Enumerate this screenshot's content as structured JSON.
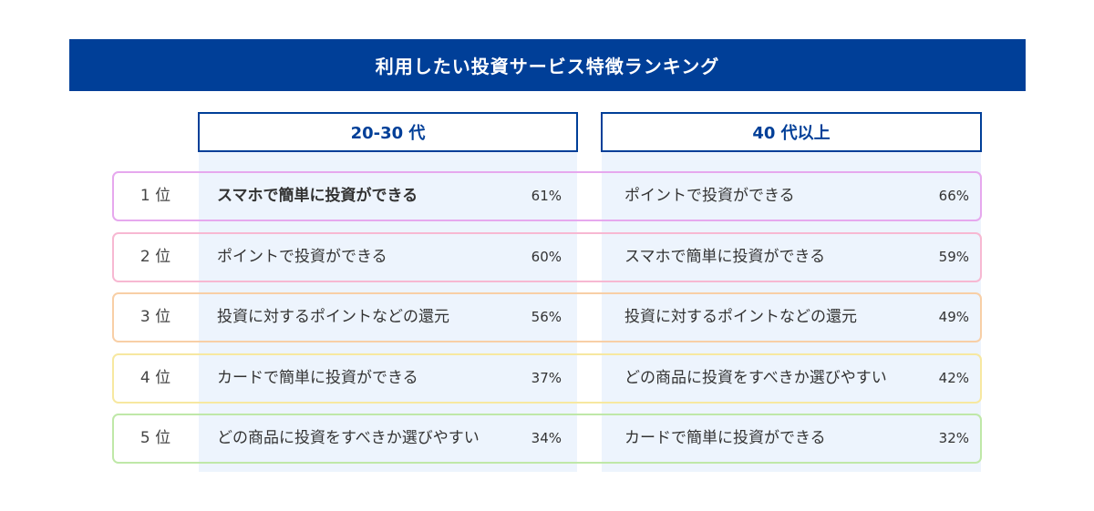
{
  "title": "利用したい投資サービス特徴ランキング",
  "columns": [
    {
      "header": "20-30 代"
    },
    {
      "header": "40 代以上"
    }
  ],
  "rank_labels": [
    "1 位",
    "2 位",
    "3 位",
    "4 位",
    "5 位"
  ],
  "row_colors": [
    "#e6a8ee",
    "#f7b8d2",
    "#f8cfa6",
    "#f7e8a0",
    "#bfe8a8"
  ],
  "chart_data": {
    "type": "table",
    "title": "利用したい投資サービス特徴ランキング",
    "groups": [
      {
        "name": "20-30 代",
        "rows": [
          {
            "rank": "1 位",
            "label": "スマホで簡単に投資ができる",
            "value": 61,
            "display": "61%"
          },
          {
            "rank": "2 位",
            "label": "ポイントで投資ができる",
            "value": 60,
            "display": "60%"
          },
          {
            "rank": "3 位",
            "label": "投資に対するポイントなどの還元",
            "value": 56,
            "display": "56%"
          },
          {
            "rank": "4 位",
            "label": "カードで簡単に投資ができる",
            "value": 37,
            "display": "37%"
          },
          {
            "rank": "5 位",
            "label": "どの商品に投資をすべきか選びやすい",
            "value": 34,
            "display": "34%"
          }
        ]
      },
      {
        "name": "40 代以上",
        "rows": [
          {
            "rank": "1 位",
            "label": "ポイントで投資ができる",
            "value": 66,
            "display": "66%"
          },
          {
            "rank": "2 位",
            "label": "スマホで簡単に投資ができる",
            "value": 59,
            "display": "59%"
          },
          {
            "rank": "3 位",
            "label": "投資に対するポイントなどの還元",
            "value": 49,
            "display": "49%"
          },
          {
            "rank": "4 位",
            "label": "どの商品に投資をすべきか選びやすい",
            "value": 42,
            "display": "42%"
          },
          {
            "rank": "5 位",
            "label": "カードで簡単に投資ができる",
            "value": 32,
            "display": "32%"
          }
        ]
      }
    ]
  }
}
